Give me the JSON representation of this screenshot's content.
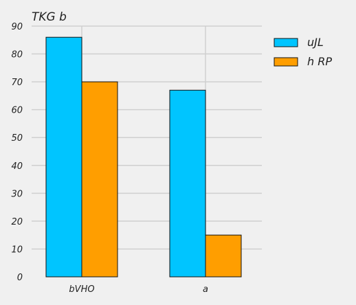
{
  "chart_data": {
    "type": "bar",
    "title": "TKG  b",
    "xlabel": "",
    "ylabel": "",
    "categories": [
      "bVHO",
      "a"
    ],
    "series": [
      {
        "name": "uJL",
        "values": [
          86,
          67
        ],
        "color": "#00c5ff"
      },
      {
        "name": "h RP",
        "values": [
          70,
          15
        ],
        "color": "#ff9e00"
      }
    ],
    "ylim": [
      0,
      90
    ],
    "yticks": [
      "0",
      "10",
      "20",
      "30",
      "40",
      "50",
      "60",
      "70",
      "80",
      "90"
    ],
    "grid": true,
    "legend_position": "top-right"
  }
}
